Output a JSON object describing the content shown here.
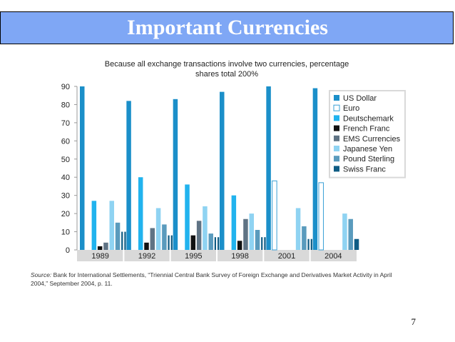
{
  "slide": {
    "title": "Important Currencies",
    "page_number": "7"
  },
  "chart_data": {
    "type": "bar",
    "title": "Because all exchange transactions involve two currencies, percentage",
    "subtitle": "shares total 200%",
    "categories": [
      "1989",
      "1992",
      "1995",
      "1998",
      "2001",
      "2004"
    ],
    "ylim": [
      0,
      90
    ],
    "yticks": [
      0,
      10,
      20,
      30,
      40,
      50,
      60,
      70,
      80,
      90
    ],
    "grid": false,
    "legend_position": "top-right",
    "series": [
      {
        "name": "US Dollar",
        "color": "#1b8fc9",
        "outline": false,
        "values": [
          90,
          82,
          83,
          87,
          90,
          89
        ]
      },
      {
        "name": "Euro",
        "color": "#ffffff",
        "outline": true,
        "values": [
          null,
          null,
          null,
          null,
          38,
          37
        ]
      },
      {
        "name": "Deutschemark",
        "color": "#21b3ee",
        "outline": false,
        "values": [
          27,
          40,
          36,
          30,
          null,
          null
        ]
      },
      {
        "name": "French Franc",
        "color": "#111111",
        "outline": false,
        "values": [
          2,
          4,
          8,
          5,
          null,
          null
        ]
      },
      {
        "name": "EMS Currencies",
        "color": "#5f7384",
        "outline": false,
        "values": [
          4,
          12,
          16,
          17,
          null,
          null
        ]
      },
      {
        "name": "Japanese Yen",
        "color": "#8fd3f2",
        "outline": false,
        "values": [
          27,
          23,
          24,
          20,
          23,
          20
        ]
      },
      {
        "name": "Pound Sterling",
        "color": "#5a9bbd",
        "outline": false,
        "values": [
          15,
          14,
          9,
          11,
          13,
          17
        ]
      },
      {
        "name": "Swiss Franc",
        "color": "#0f5c84",
        "outline": false,
        "values": [
          10,
          8,
          7,
          7,
          6,
          6
        ]
      }
    ],
    "source_label": "Source:",
    "source_line1": " Bank for International Settlements, “Triennial Central Bank Survey of Foreign Exchange and Derivatives Market Activity in April",
    "source_line2": "2004,” September 2004, p. 11."
  }
}
